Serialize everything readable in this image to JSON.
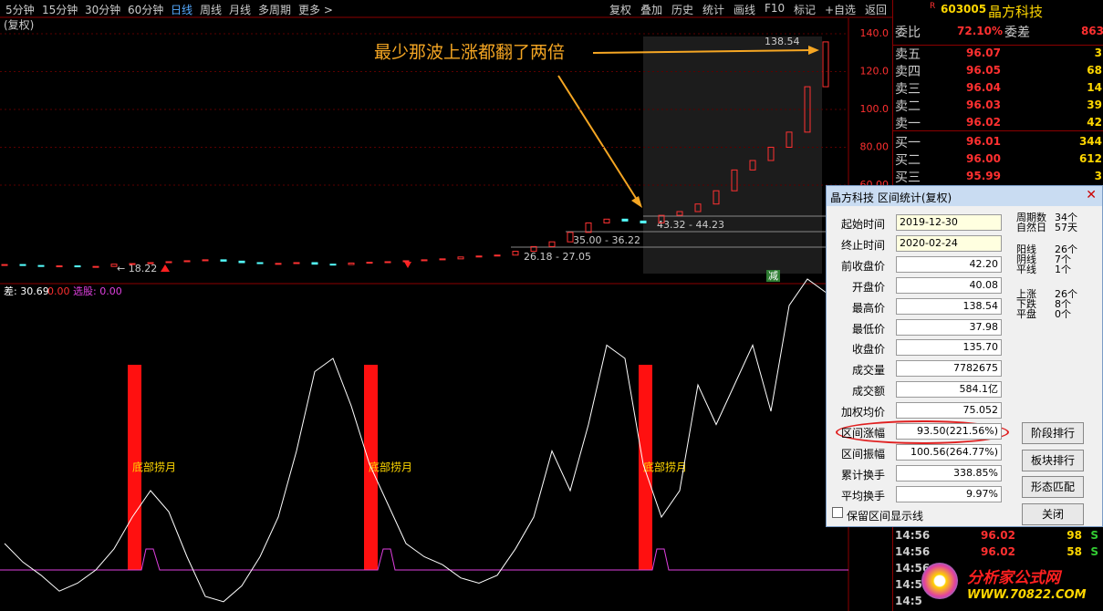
{
  "toolbar": {
    "periods": [
      "5分钟",
      "15分钟",
      "30分钟",
      "60分钟",
      "日线",
      "周线",
      "月线",
      "多周期",
      "更多 >"
    ],
    "actions": [
      "复权",
      "叠加",
      "历史",
      "统计",
      "画线",
      "F10",
      "标记",
      "+自选",
      "返回"
    ]
  },
  "pane_label": "(复权)",
  "price": {
    "ylim": [
      8.4,
      148.2
    ],
    "yticks": [
      {
        "value": 140,
        "label": "140.0"
      },
      {
        "value": 120,
        "label": "120.0"
      },
      {
        "value": 100,
        "label": "100.0"
      },
      {
        "value": 80,
        "label": "80.00"
      },
      {
        "value": 60,
        "label": "60.00"
      }
    ],
    "closes": [
      18,
      17.5,
      17,
      17.3,
      16.8,
      17,
      18.2,
      18.5,
      19,
      19.5,
      20,
      20.5,
      19.8,
      19,
      18.5,
      18.6,
      19,
      18.2,
      18,
      18.8,
      19.2,
      19.5,
      20,
      20.5,
      21,
      22,
      22.5,
      23,
      25,
      27.5,
      30,
      35,
      40,
      42,
      41,
      40,
      44,
      46,
      50,
      57,
      68,
      73,
      80,
      88,
      112,
      135.7
    ],
    "labels": [
      "138.54",
      "43.32 - 44.23",
      "35.00 - 36.22",
      "26.18 - 27.05",
      "← 18.22",
      "减"
    ],
    "annotation": "最少那波上涨都翻了两倍"
  },
  "indicator": {
    "texts": [
      "差: 30.69",
      "0.00",
      "选股: 0.00"
    ],
    "signal_label": "底部捞月",
    "values": [
      10,
      3,
      -2,
      -8,
      -5,
      0,
      8,
      20,
      30,
      22,
      5,
      -10,
      -12,
      -6,
      5,
      20,
      45,
      75,
      80,
      62,
      40,
      25,
      10,
      5,
      2,
      -3,
      -5,
      -2,
      8,
      20,
      45,
      30,
      55,
      85,
      80,
      40,
      20,
      30,
      70,
      55,
      70,
      85,
      60,
      100,
      110,
      105
    ]
  },
  "quote": {
    "flag": "R",
    "code": "603005",
    "name": "晶方科技",
    "ratio_label": "委比",
    "ratio": "72.10%",
    "diff_label": "委差",
    "diff": "863",
    "book": [
      [
        "卖五",
        "96.07",
        "3"
      ],
      [
        "卖四",
        "96.05",
        "68"
      ],
      [
        "卖三",
        "96.04",
        "14"
      ],
      [
        "卖二",
        "96.03",
        "39"
      ],
      [
        "卖一",
        "96.02",
        "42"
      ],
      [
        "买一",
        "96.01",
        "344"
      ],
      [
        "买二",
        "96.00",
        "612"
      ],
      [
        "买三",
        "95.99",
        "3"
      ]
    ],
    "ticks": [
      [
        "14:56",
        "96.02",
        "98",
        "S"
      ],
      [
        "14:56",
        "96.02",
        "58",
        "S"
      ],
      [
        "14:56",
        "",
        "",
        " "
      ],
      [
        "14:5",
        "",
        "",
        " "
      ],
      [
        "14:5",
        "",
        "",
        " "
      ]
    ]
  },
  "dialog": {
    "title": "晶方科技 区间统计(复权)",
    "fields": [
      [
        "起始时间",
        "2019-12-30"
      ],
      [
        "终止时间",
        "2020-02-24"
      ],
      [
        "前收盘价",
        "42.20"
      ],
      [
        "开盘价",
        "40.08"
      ],
      [
        "最高价",
        "138.54"
      ],
      [
        "最低价",
        "37.98"
      ],
      [
        "收盘价",
        "135.70"
      ],
      [
        "成交量",
        "7782675"
      ],
      [
        "成交额",
        "584.1亿"
      ],
      [
        "加权均价",
        "75.052"
      ],
      [
        "区间涨幅",
        "93.50(221.56%)"
      ],
      [
        "区间振幅",
        "100.56(264.77%)"
      ],
      [
        "累计换手",
        "338.85%"
      ],
      [
        "平均换手",
        "9.97%"
      ]
    ],
    "stats": [
      [
        "周期数",
        "34个"
      ],
      [
        "自然日",
        "57天"
      ],
      [
        "阳线",
        "26个"
      ],
      [
        "阴线",
        "7个"
      ],
      [
        "平线",
        "1个"
      ],
      [
        "上涨",
        "26个"
      ],
      [
        "下跌",
        "8个"
      ],
      [
        "平盘",
        "0个"
      ]
    ],
    "buttons": [
      "阶段排行",
      "板块排行",
      "形态匹配",
      "关闭"
    ],
    "checkbox": "保留区间显示线"
  },
  "watermark": [
    "分析家公式网",
    "WWW.70822.COM"
  ]
}
